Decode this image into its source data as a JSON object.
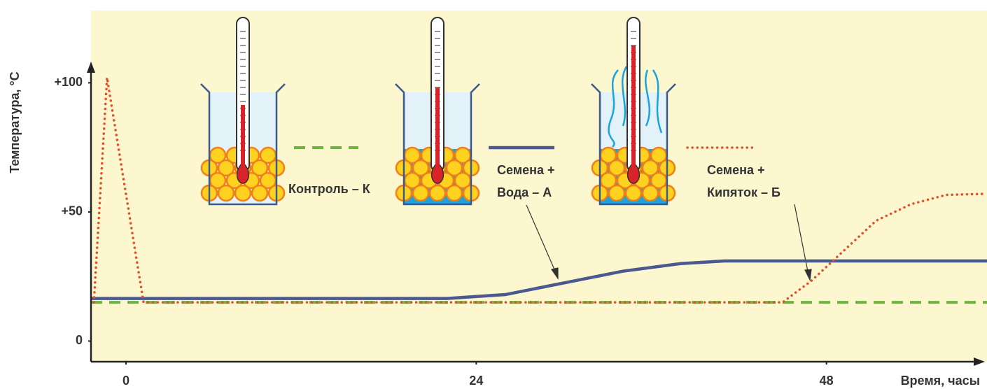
{
  "chart_data": {
    "type": "line",
    "y_label": "Температура, °С",
    "x_label": "Время, часы",
    "xlim": [
      -2.4,
      59
    ],
    "xticks": [
      0,
      24,
      48
    ],
    "ylim": [
      -8,
      128
    ],
    "yticks": [
      {
        "value": 100,
        "label": "+100"
      },
      {
        "value": 50,
        "label": "+50"
      },
      {
        "value": 0,
        "label": "0"
      }
    ],
    "series": [
      {
        "name": "Контроль – К",
        "color": "#6cb33f",
        "style": "dashed",
        "x": [
          -2.4,
          59
        ],
        "values": [
          15,
          15
        ]
      },
      {
        "name": "Семена + Вода – А",
        "color": "#4a5a8e",
        "style": "solid",
        "x": [
          -2.4,
          22,
          26,
          30,
          34,
          38,
          41,
          59
        ],
        "values": [
          16.5,
          16.5,
          18,
          22.5,
          27,
          30,
          31,
          31
        ]
      },
      {
        "name": "Семена + Кипяток – Б",
        "color": "#e0502a",
        "style": "dotted",
        "x": [
          -2.2,
          -1.3,
          1.2,
          45,
          47,
          49,
          51.4,
          53.8,
          56.2,
          58.8
        ],
        "values": [
          15,
          102,
          15,
          15,
          23.5,
          34,
          46.6,
          53,
          56.6,
          57
        ]
      }
    ]
  }
}
